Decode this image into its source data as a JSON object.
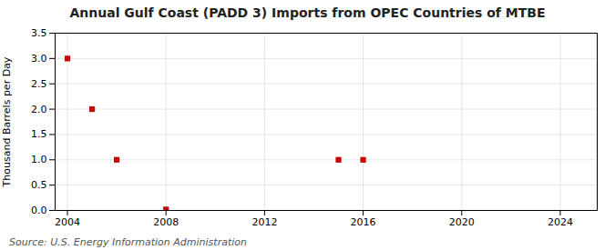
{
  "chart_data": {
    "type": "scatter",
    "title": "Annual Gulf Coast (PADD 3) Imports from OPEC Countries of MTBE",
    "ylabel": "Thousand Barrels per Day",
    "source": "Source: U.S. Energy Information Administration",
    "x": [
      2004,
      2005,
      2006,
      2008,
      2015,
      2016
    ],
    "values": [
      3.0,
      2.0,
      1.0,
      0.02,
      1.0,
      1.0
    ],
    "color": "#cc0000",
    "marker": "square",
    "xlim": [
      2003.5,
      2025.5
    ],
    "ylim": [
      0.0,
      3.5
    ],
    "xticks": [
      2004,
      2008,
      2012,
      2016,
      2020,
      2024
    ],
    "yticks": [
      {
        "value": 0,
        "label": "0.0"
      },
      0.5,
      {
        "value": 1,
        "label": "1.0"
      },
      1.5,
      {
        "value": 2,
        "label": "2.0"
      },
      2.5,
      {
        "value": 3,
        "label": "3.0"
      },
      3.5
    ],
    "grid": true
  }
}
